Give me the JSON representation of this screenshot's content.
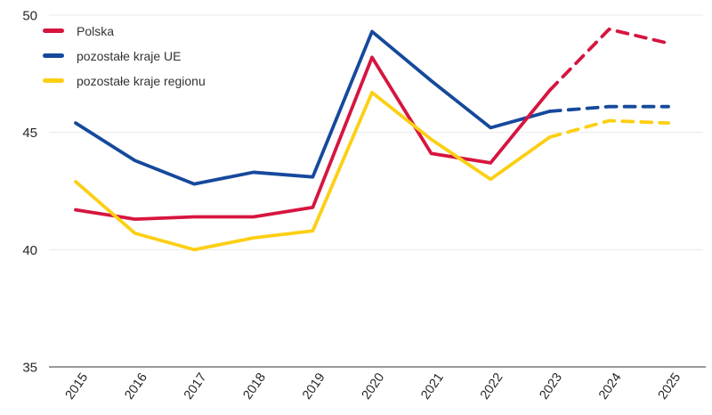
{
  "chart_data": {
    "type": "line",
    "x": [
      "2015",
      "2016",
      "2017",
      "2018",
      "2019",
      "2020",
      "2021",
      "2022",
      "2023",
      "2024",
      "2025"
    ],
    "series": [
      {
        "name": "Polska",
        "color": "#D6153F",
        "values": [
          41.7,
          41.3,
          41.4,
          41.4,
          41.8,
          48.2,
          44.1,
          43.7,
          46.8,
          49.4,
          48.8
        ],
        "forecast_from_index": 8
      },
      {
        "name": "pozostałe kraje UE",
        "color": "#16499C",
        "values": [
          45.4,
          43.8,
          42.8,
          43.3,
          43.1,
          49.3,
          47.2,
          45.2,
          45.9,
          46.1,
          46.1
        ],
        "forecast_from_index": 8
      },
      {
        "name": "pozostałe kraje regionu",
        "color": "#FCCF14",
        "values": [
          42.9,
          40.7,
          40.0,
          40.5,
          40.8,
          46.7,
          44.7,
          43.0,
          44.8,
          45.5,
          45.4
        ],
        "forecast_from_index": 8
      }
    ],
    "title": "",
    "xlabel": "",
    "ylabel": "",
    "ylim": [
      35,
      50
    ],
    "yticks": [
      35,
      40,
      45,
      50
    ],
    "grid": true,
    "legend_position": "top-left",
    "draw_order": [
      1,
      0,
      2
    ],
    "line_style_note": "segments from 2023 onward are dashed (forecast)"
  },
  "colors": {
    "grid": "#EAEAEA",
    "axis": "#8C8C8C",
    "tick_text": "#262626",
    "legend_text": "#333333",
    "background": "#FFFFFF"
  }
}
